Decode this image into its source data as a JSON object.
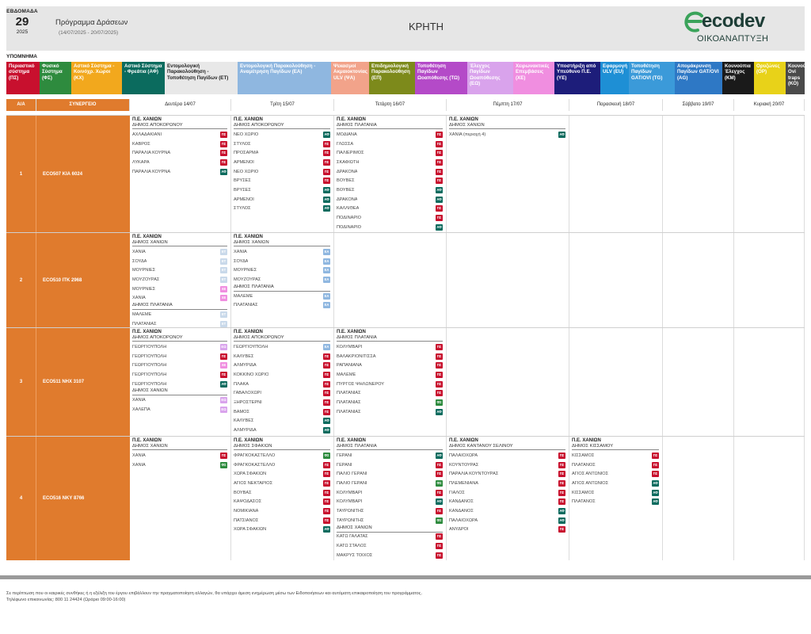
{
  "header": {
    "week_label": "ΕΒΔΟΜΑΔΑ",
    "week_number": "29",
    "year": "2025",
    "program_title": "Πρόγραμμα Δράσεων",
    "date_range": "(14/07/2025 - 20/07/2025)",
    "region": "ΚΡΗΤΗ",
    "logo_text": "ecodev",
    "logo_subtitle": "ΟΙΚΟΑΝΑΠΤΥΞΗ"
  },
  "legend_title": "ΥΠΟΜΝΗΜΑ",
  "legend": [
    {
      "label": "Περιαστικό σύστημα (ΠΣ)",
      "bg": "#c8102e",
      "fg": "#ffffff"
    },
    {
      "label": "Φυσικό Σύστημα (ΦΣ)",
      "bg": "#2e8b3e",
      "fg": "#ffffff"
    },
    {
      "label": "Αστικό Σύστημα - Κοινόχρ. Χώροι (ΚΧ)",
      "bg": "#f2a81d",
      "fg": "#ffffff"
    },
    {
      "label": "Αστικό Σύστημα - Φρεάτια (ΑΦ)",
      "bg": "#0b6b5e",
      "fg": "#ffffff"
    },
    {
      "label": "Εντομολογική Παρακολούθηση - Τοποθέτηση Παγίδων (ΕΤ)",
      "bg": "#e8e8e8",
      "fg": "#222222"
    },
    {
      "label": "Εντομολογική Παρακολούθηση - Αναμέτρηση Παγίδων (ΕΑ)",
      "bg": "#8fb7e0",
      "fg": "#ffffff"
    },
    {
      "label": "Ψεκασμοί Ακμαιοκτονίας ULV (ΨΑ)",
      "bg": "#f2a38a",
      "fg": "#ffffff"
    },
    {
      "label": "Επιδημιολογική Παρακολούθηση (ΕΠ)",
      "bg": "#7d8a1b",
      "fg": "#ffffff"
    },
    {
      "label": "Τοποθέτηση Παγίδων Ωοαπόθεσης (ΤΩ)",
      "bg": "#b44ac8",
      "fg": "#ffffff"
    },
    {
      "label": "Έλεγχος Παγίδων Ωοαπόθεσης (ΕΩ)",
      "bg": "#d9a3ec",
      "fg": "#ffffff"
    },
    {
      "label": "Χειρωνακτικές Επεμβάσεις (ΧΕ)",
      "bg": "#f08ee0",
      "fg": "#ffffff"
    },
    {
      "label": "Υποστήριξη από Υπεύθυνο Π.Ε. (ΥΕ)",
      "bg": "#1d1d7a",
      "fg": "#ffffff"
    },
    {
      "label": "Εφαρμογή ULV (EU)",
      "bg": "#1e8fd5",
      "fg": "#ffffff"
    },
    {
      "label": "Τοποθέτηση Παγίδων GAT/OVI (TG)",
      "bg": "#3b9ad9",
      "fg": "#ffffff"
    },
    {
      "label": "Απομάκρυνση Παγίδων GAT/OVI (AG)",
      "bg": "#2e78c5",
      "fg": "#ffffff"
    },
    {
      "label": "Κουνούπια Έλεγχος (ΚΜ)",
      "bg": "#1a1a1a",
      "fg": "#ffffff"
    },
    {
      "label": "Ορυζώνες (ΟΡ)",
      "bg": "#e8d219",
      "fg": "#ffffff"
    },
    {
      "label": "Κουνούπια Ovi traps (ΚΟ)",
      "bg": "#4a4a4a",
      "fg": "#ffffff"
    }
  ],
  "badge_colors": {
    "ΠΣ": "#c8102e",
    "ΑΦ": "#0b6b5e",
    "ΕΑ": "#8fb7e0",
    "ΕΤ": "#c9d9ea",
    "ΦΣ": "#2e8b3e",
    "ΧΕ": "#f08ee0",
    "ΕΩ": "#d9a3ec"
  },
  "table_header": {
    "aa": "Α/Α",
    "crew": "ΣΥΝΕΡΓΕΙΟ",
    "days": [
      "Δευτέρα 14/07",
      "Τρίτη 15/07",
      "Τετάρτη 16/07",
      "Πέμπτη 17/07",
      "Παρασκευή 18/07",
      "Σάββατο 19/07",
      "Κυριακή 20/07"
    ]
  },
  "crews": [
    {
      "num": "1",
      "name": "ECO507 ΚΙΑ 6024",
      "days": [
        {
          "region": "Π.Ε. ΧΑΝΙΩΝ",
          "muni": "ΔΗΜΟΣ ΑΠΟΚΟΡΩΝΟΥ",
          "rows": [
            {
              "name": "ΑΧΛΑΔΑΚΙΑΝΙ",
              "code": "ΠΣ"
            },
            {
              "name": "ΚΑΒΡΟΣ",
              "code": "ΠΣ"
            },
            {
              "name": "ΠΑΡΑΛΙΑ ΚΟΥΡΝΑ",
              "code": "ΠΣ"
            },
            {
              "name": "ΛΥΚΑΡΑ",
              "code": "ΠΣ"
            },
            {
              "name": "ΠΑΡΑΛΙΑ ΚΟΥΡΝΑ",
              "code": "ΑΦ"
            }
          ]
        },
        {
          "region": "Π.Ε. ΧΑΝΙΩΝ",
          "muni": "ΔΗΜΟΣ ΑΠΟΚΟΡΩΝΟΥ",
          "rows": [
            {
              "name": "ΝΕΟ ΧΩΡΙΟ",
              "code": "ΑΦ"
            },
            {
              "name": "ΣΤΥΛΟΣ",
              "code": "ΠΣ"
            },
            {
              "name": "ΠΡΟΣΑΡΜΑ",
              "code": "ΠΣ"
            },
            {
              "name": "ΑΡΜΕΝΟΙ",
              "code": "ΠΣ"
            },
            {
              "name": "ΝΕΟ ΧΩΡΙΟ",
              "code": "ΠΣ"
            },
            {
              "name": "ΒΡΥΣΕΣ",
              "code": "ΠΣ"
            },
            {
              "name": "ΒΡΥΣΕΣ",
              "code": "ΑΦ"
            },
            {
              "name": "ΑΡΜΕΝΟΙ",
              "code": "ΑΦ"
            },
            {
              "name": "ΣΤΥΛΟΣ",
              "code": "ΑΦ"
            }
          ]
        },
        {
          "region": "Π.Ε. ΧΑΝΙΩΝ",
          "muni": "ΔΗΜΟΣ ΠΛΑΤΑΝΙΑ",
          "rows": [
            {
              "name": "ΜΟΔΙΑΝΑ",
              "code": "ΠΣ"
            },
            {
              "name": "ΓΛΩΣΣΑ",
              "code": "ΠΣ"
            },
            {
              "name": "ΠΑΛΙΕΡΙΜΟΣ",
              "code": "ΠΣ"
            },
            {
              "name": "ΣΚΑΦΙΩΤΗ",
              "code": "ΠΣ"
            },
            {
              "name": "ΔΡΑΚΟΝΑ",
              "code": "ΠΣ"
            },
            {
              "name": "ΒΟΥΒΕΣ",
              "code": "ΠΣ"
            },
            {
              "name": "ΒΟΥΒΕΣ",
              "code": "ΑΦ"
            },
            {
              "name": "ΔΡΑΚΟΝΑ",
              "code": "ΑΦ"
            },
            {
              "name": "ΚΑΛΛΙΘΕΑ",
              "code": "ΠΣ"
            },
            {
              "name": "ΠΟΔΙΝΑΡΙΟ",
              "code": "ΠΣ"
            },
            {
              "name": "ΠΟΔΙΝΑΡΙΟ",
              "code": "ΑΦ"
            }
          ]
        },
        {
          "region": "Π.Ε. ΧΑΝΙΩΝ",
          "muni": "ΔΗΜΟΣ ΧΑΝΙΩΝ",
          "rows": [
            {
              "name": "ΧΑΝΙΑ (περιοχή 4)",
              "code": "ΑΦ"
            }
          ]
        },
        null,
        null,
        null
      ]
    },
    {
      "num": "2",
      "name": "ECO510 ΙΤΚ 2968",
      "days": [
        {
          "region": "Π.Ε. ΧΑΝΙΩΝ",
          "muni": "ΔΗΜΟΣ ΧΑΝΙΩΝ",
          "rows": [
            {
              "name": "ΧΑΝΙΑ",
              "code": "ΕΤ"
            },
            {
              "name": "ΣΟΥΔΑ",
              "code": "ΕΤ"
            },
            {
              "name": "ΜΟΥΡΝΙΕΣ",
              "code": "ΕΤ"
            },
            {
              "name": "ΜΟΥΖΟΥΡΑΣ",
              "code": "ΕΤ"
            },
            {
              "name": "ΜΟΥΡΝΙΕΣ",
              "code": "ΧΕ"
            },
            {
              "name": "ΧΑΝΙΑ",
              "code": "ΧΕ"
            },
            {
              "sub": "ΔΗΜΟΣ ΠΛΑΤΑΝΙΑ"
            },
            {
              "name": "ΜΑΛΕΜΕ",
              "code": "ΕΤ"
            },
            {
              "name": "ΠΛΑΤΑΝΙΑΣ",
              "code": "ΕΤ"
            }
          ]
        },
        {
          "region": "Π.Ε. ΧΑΝΙΩΝ",
          "muni": "ΔΗΜΟΣ ΧΑΝΙΩΝ",
          "rows": [
            {
              "name": "ΧΑΝΙΑ",
              "code": "ΕΑ"
            },
            {
              "name": "ΣΟΥΔΑ",
              "code": "ΕΑ"
            },
            {
              "name": "ΜΟΥΡΝΙΕΣ",
              "code": "ΕΑ"
            },
            {
              "name": "ΜΟΥΖΟΥΡΑΣ",
              "code": "ΕΑ"
            },
            {
              "sub": "ΔΗΜΟΣ ΠΛΑΤΑΝΙΑ"
            },
            {
              "name": "ΜΑΛΕΜΕ",
              "code": "ΕΑ"
            },
            {
              "name": "ΠΛΑΤΑΝΙΑΣ",
              "code": "ΕΑ"
            }
          ]
        },
        null,
        null,
        null,
        null,
        null
      ]
    },
    {
      "num": "3",
      "name": "ECO511 ΝΗΧ 3107",
      "days": [
        {
          "region": "Π.Ε. ΧΑΝΙΩΝ",
          "muni": "ΔΗΜΟΣ ΑΠΟΚΟΡΩΝΟΥ",
          "rows": [
            {
              "name": "ΓΕΩΡΓΙΟΥΠΟΛΗ",
              "code": "ΕΩ"
            },
            {
              "name": "ΓΕΩΡΓΙΟΥΠΟΛΗ",
              "code": "ΠΣ"
            },
            {
              "name": "ΓΕΩΡΓΙΟΥΠΟΛΗ",
              "code": "ΧΕ"
            },
            {
              "name": "ΓΕΩΡΓΙΟΥΠΟΛΗ",
              "code": "ΠΣ"
            },
            {
              "name": "ΓΕΩΡΓΙΟΥΠΟΛΗ",
              "code": "ΑΦ"
            },
            {
              "sub": "ΔΗΜΟΣ ΧΑΝΙΩΝ"
            },
            {
              "name": "ΧΑΝΙΑ",
              "code": "ΕΩ"
            },
            {
              "name": "ΧΑΛΕΠΑ",
              "code": "ΕΩ"
            }
          ]
        },
        {
          "region": "Π.Ε. ΧΑΝΙΩΝ",
          "muni": "ΔΗΜΟΣ ΑΠΟΚΟΡΩΝΟΥ",
          "rows": [
            {
              "name": "ΓΕΩΡΓΙΟΥΠΟΛΗ",
              "code": "ΕΑ"
            },
            {
              "name": "ΚΑΛΥΒΕΣ",
              "code": "ΠΣ"
            },
            {
              "name": "ΑΛΜΥΡΙΔΑ",
              "code": "ΠΣ"
            },
            {
              "name": "ΚΟΚΚΙΝΟ ΧΩΡΙΟ",
              "code": "ΠΣ"
            },
            {
              "name": "ΠΛΑΚΑ",
              "code": "ΠΣ"
            },
            {
              "name": "ΓΑΒΑΛΟΧΩΡΙ",
              "code": "ΠΣ"
            },
            {
              "name": "ΞΗΡΟΣΤΕΡΝΙ",
              "code": "ΠΣ"
            },
            {
              "name": "ΒΑΜΟΣ",
              "code": "ΠΣ"
            },
            {
              "name": "ΚΑΛΥΒΕΣ",
              "code": "ΑΦ"
            },
            {
              "name": "ΑΛΜΥΡΙΔΑ",
              "code": "ΑΦ"
            }
          ]
        },
        {
          "region": "Π.Ε. ΧΑΝΙΩΝ",
          "muni": "ΔΗΜΟΣ ΠΛΑΤΑΝΙΑ",
          "rows": [
            {
              "name": "ΚΟΛΥΜΒΑΡΙ",
              "code": "ΠΣ"
            },
            {
              "name": "ΒΑΛΑΚΡΙΟΝΙΤΙΣΣΑ",
              "code": "ΠΣ"
            },
            {
              "name": "ΡΑΠΑΝΙΑΝΑ",
              "code": "ΠΣ"
            },
            {
              "name": "ΜΑΛΕΜΕ",
              "code": "ΠΣ"
            },
            {
              "name": "ΠΥΡΓΟΣ ΨΗΛΩΝΕΡΟΥ",
              "code": "ΠΣ"
            },
            {
              "name": "ΠΛΑΤΑΝΙΑΣ",
              "code": "ΠΣ"
            },
            {
              "name": "ΠΛΑΤΑΝΙΑΣ",
              "code": "ΦΣ"
            },
            {
              "name": "ΠΛΑΤΑΝΙΑΣ",
              "code": "ΑΦ"
            }
          ]
        },
        null,
        null,
        null,
        null
      ]
    },
    {
      "num": "4",
      "name": "ECO516 ΝΚΥ 8766",
      "days": [
        {
          "region": "Π.Ε. ΧΑΝΙΩΝ",
          "muni": "ΔΗΜΟΣ ΧΑΝΙΩΝ",
          "rows": [
            {
              "name": "ΧΑΝΙΑ",
              "code": "ΠΣ"
            },
            {
              "name": "ΧΑΝΙΑ",
              "code": "ΦΣ"
            }
          ]
        },
        {
          "region": "Π.Ε. ΧΑΝΙΩΝ",
          "muni": "ΔΗΜΟΣ ΣΦΑΚΙΩΝ",
          "rows": [
            {
              "name": "ΦΡΑΓΚΟΚΑΣΤΕΛΛΟ",
              "code": "ΦΣ"
            },
            {
              "name": "ΦΡΑΓΚΟΚΑΣΤΕΛΛΟ",
              "code": "ΠΣ"
            },
            {
              "name": "ΧΩΡΑ ΣΦΑΚΙΩΝ",
              "code": "ΠΣ"
            },
            {
              "name": "ΑΓΙΟΣ ΝΕΚΤΑΡΙΟΣ",
              "code": "ΠΣ"
            },
            {
              "name": "ΒΟΥΒΑΣ",
              "code": "ΠΣ"
            },
            {
              "name": "ΚΑΨΟΔΑΣΟΣ",
              "code": "ΠΣ"
            },
            {
              "name": "ΝΟΜΙΚΙΑΝΑ",
              "code": "ΠΣ"
            },
            {
              "name": "ΠΑΤΣΙΑΝΟΣ",
              "code": "ΠΣ"
            },
            {
              "name": "ΧΩΡΑ ΣΦΑΚΙΩΝ",
              "code": "ΑΦ"
            }
          ]
        },
        {
          "region": "Π.Ε. ΧΑΝΙΩΝ",
          "muni": "ΔΗΜΟΣ ΠΛΑΤΑΝΙΑ",
          "rows": [
            {
              "name": "ΓΕΡΑΝΙ",
              "code": "ΑΦ"
            },
            {
              "name": "ΓΕΡΑΝΙ",
              "code": "ΠΣ"
            },
            {
              "name": "ΠΑΛΙΟ ΓΕΡΑΝΙ",
              "code": "ΠΣ"
            },
            {
              "name": "ΠΑΛΙΟ ΓΕΡΑΝΙ",
              "code": "ΦΣ"
            },
            {
              "name": "ΚΟΛΥΜΒΑΡΙ",
              "code": "ΠΣ"
            },
            {
              "name": "ΚΟΛΥΜΒΑΡΙ",
              "code": "ΑΦ"
            },
            {
              "name": "ΤΑΥΡΩΝΙΤΗΣ",
              "code": "ΠΣ"
            },
            {
              "name": "ΤΑΥΡΩΝΙΤΗΣ",
              "code": "ΦΣ"
            },
            {
              "sub": "ΔΗΜΟΣ ΧΑΝΙΩΝ"
            },
            {
              "name": "ΚΑΤΩ ΓΑΛΑΤΑΣ",
              "code": "ΠΣ"
            },
            {
              "name": "ΚΑΤΩ ΣΤΑΛΟΣ",
              "code": "ΠΣ"
            },
            {
              "name": "ΜΑΚΡΥΣ ΤΟΙΧΟΣ",
              "code": "ΠΣ"
            }
          ]
        },
        {
          "region": "Π.Ε. ΧΑΝΙΩΝ",
          "muni": "ΔΗΜΟΣ ΚΑΝΤΑΝΟΥ ΣΕΛΙΝΟΥ",
          "rows": [
            {
              "name": "ΠΑΛΑΙΟΧΩΡΑ",
              "code": "ΠΣ"
            },
            {
              "name": "ΚΟΥΝΤΟΥΡΑΣ",
              "code": "ΠΣ"
            },
            {
              "name": "ΠΑΡΑΛΙΑ ΚΟΥΝΤΟΥΡΑΣ",
              "code": "ΠΣ"
            },
            {
              "name": "ΠΛΕΜΕΝΙΑΝΑ",
              "code": "ΠΣ"
            },
            {
              "name": "ΓΙΑΛΟΣ",
              "code": "ΠΣ"
            },
            {
              "name": "ΚΑΝΔΑΝΟΣ",
              "code": "ΠΣ"
            },
            {
              "name": "ΚΑΝΔΑΝΟΣ",
              "code": "ΑΦ"
            },
            {
              "name": "ΠΑΛΑΙΟΧΩΡΑ",
              "code": "ΑΦ"
            },
            {
              "name": "ΑΝΥΔΡΟΙ",
              "code": "ΠΣ"
            }
          ]
        },
        {
          "region": "Π.Ε. ΧΑΝΙΩΝ",
          "muni": "ΔΗΜΟΣ ΚΙΣΣΑΜΟΥ",
          "rows": [
            {
              "name": "ΚΙΣΣΑΜΟΣ",
              "code": "ΠΣ"
            },
            {
              "name": "ΠΛΑΤΑΝΟΣ",
              "code": "ΠΣ"
            },
            {
              "name": "ΑΓΙΟΣ ΑΝΤΩΝΙΟΣ",
              "code": "ΠΣ"
            },
            {
              "name": "ΑΓΙΟΣ ΑΝΤΩΝΙΟΣ",
              "code": "ΑΦ"
            },
            {
              "name": "ΚΙΣΣΑΜΟΣ",
              "code": "ΑΦ"
            },
            {
              "name": "ΠΛΑΤΑΝΟΣ",
              "code": "ΑΦ"
            }
          ]
        },
        null,
        null
      ]
    }
  ],
  "footer": {
    "line1": "Σε περίπτωση που οι καιρικές συνθήκες ή η εξέλιξη του έργου επιβάλλουν την πραγματοποίηση αλλαγών, θα υπάρχει άμεση ενημέρωση μέσω των Ειδοποιήσεων και αυτόματη επικαιροποίηση του προγράμματος.",
    "line2": "Τηλέφωνο επικοινωνίας: 800 11 24424 (Ωράριο 09:00-16:00)"
  }
}
